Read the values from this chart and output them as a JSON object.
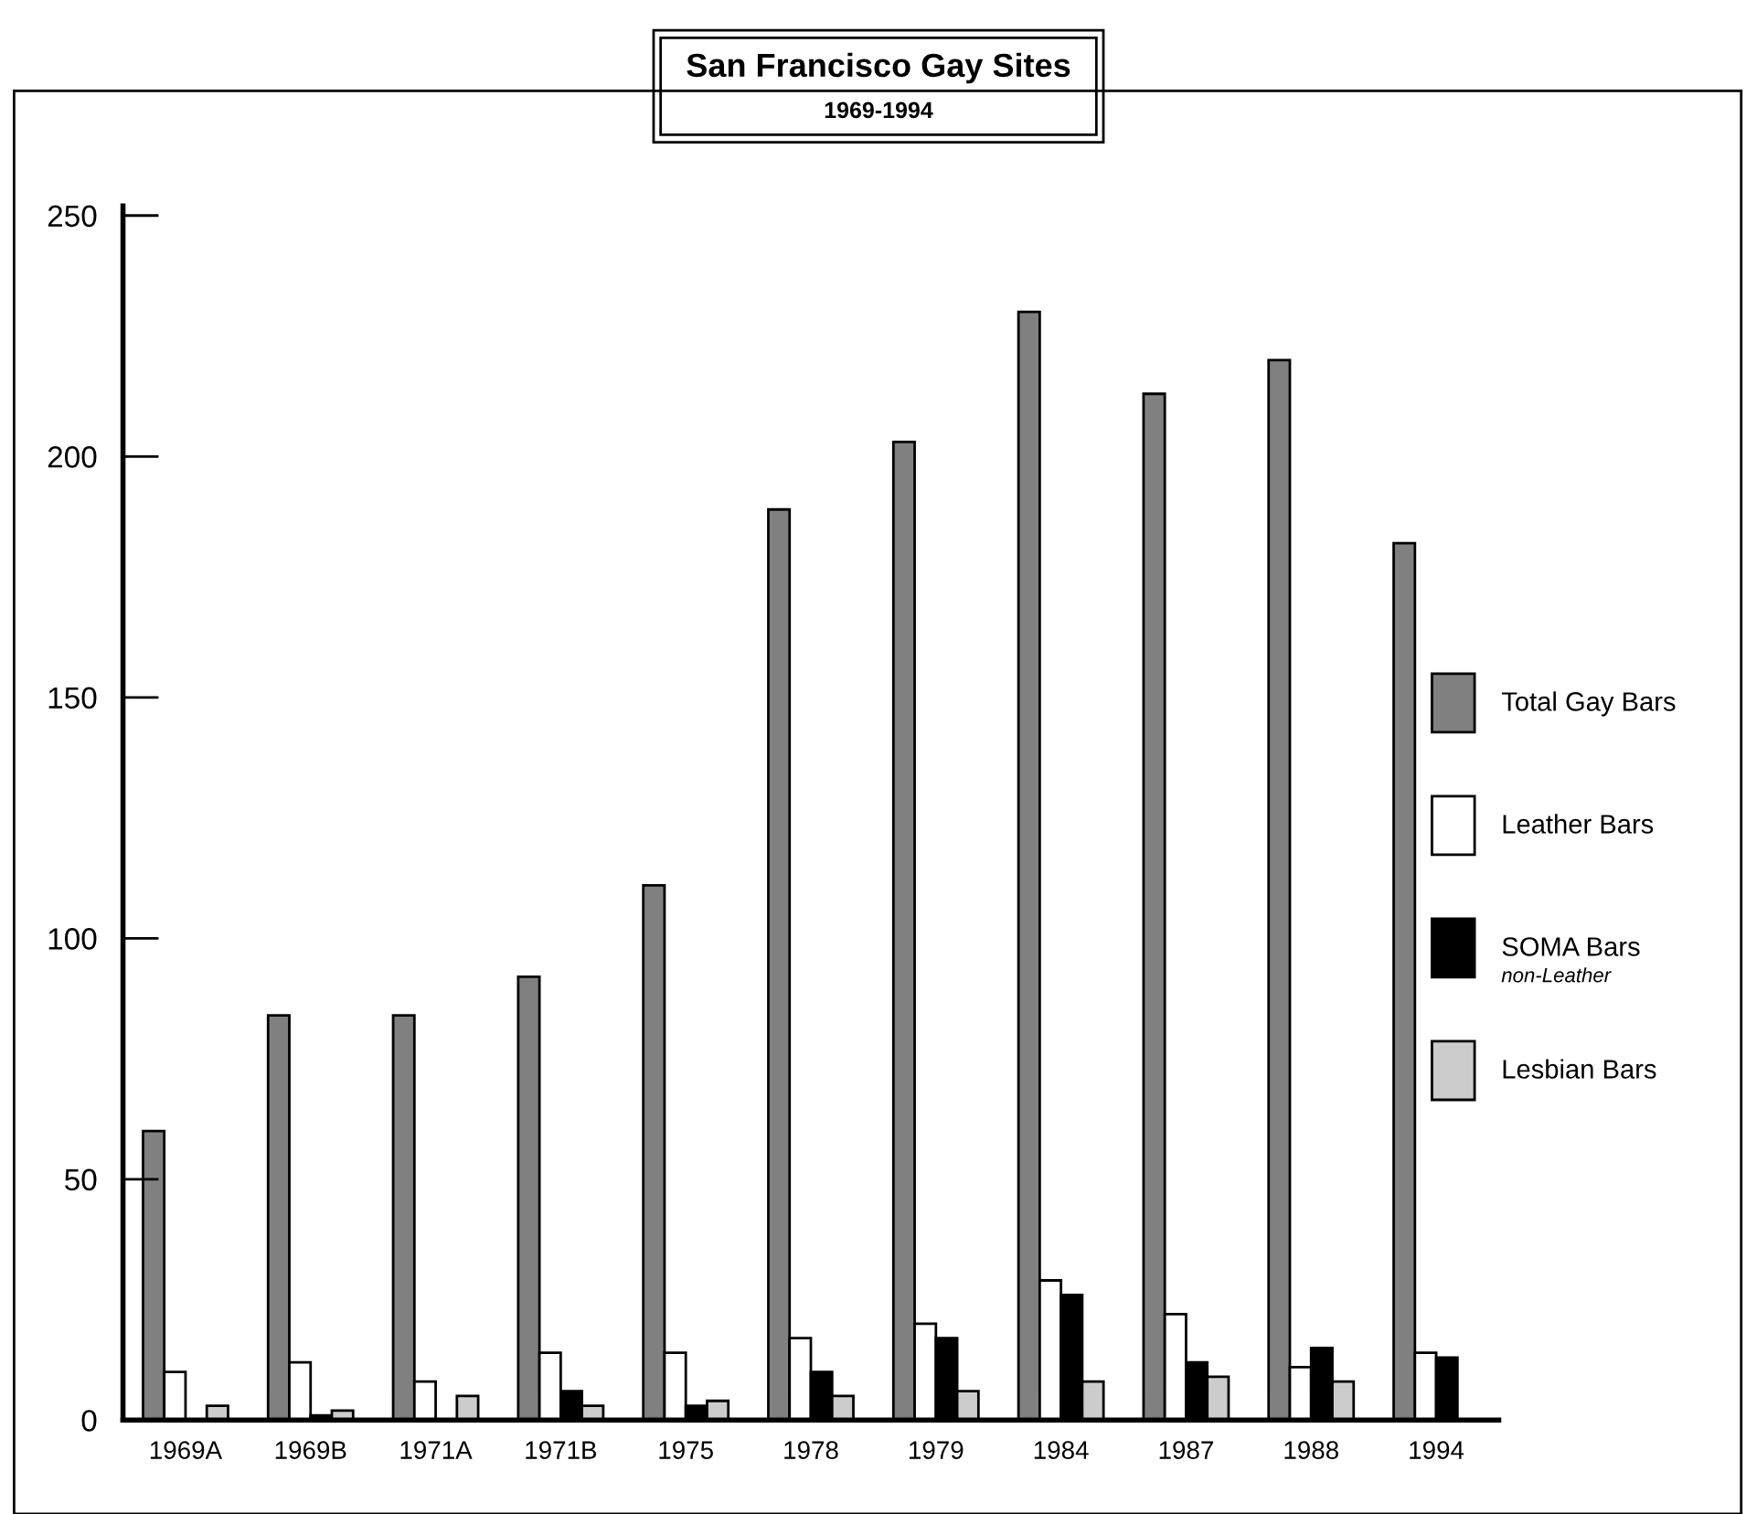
{
  "chart_data": {
    "type": "bar",
    "title": "San Francisco Gay Sites",
    "subtitle": "1969-1994",
    "categories": [
      "1969A",
      "1969B",
      "1971A",
      "1971B",
      "1975",
      "1978",
      "1979",
      "1984",
      "1987",
      "1988",
      "1994"
    ],
    "series": [
      {
        "name": "Total Gay Bars",
        "color": "#808080",
        "values": [
          60,
          84,
          84,
          92,
          111,
          189,
          203,
          230,
          213,
          220,
          182
        ]
      },
      {
        "name": "Leather Bars",
        "color": "#ffffff",
        "values": [
          10,
          12,
          8,
          14,
          14,
          17,
          20,
          29,
          22,
          11,
          14
        ]
      },
      {
        "name": "SOMA Bars",
        "color": "#000000",
        "values": [
          0,
          1,
          0,
          6,
          3,
          10,
          17,
          26,
          12,
          15,
          13
        ]
      },
      {
        "name": "Lesbian Bars",
        "color": "#cccccc",
        "values": [
          3,
          2,
          5,
          3,
          4,
          5,
          6,
          8,
          9,
          8,
          null
        ]
      }
    ],
    "annotations": [
      "non-Leather"
    ],
    "ylim": [
      0,
      252
    ],
    "yticks": [
      0,
      50,
      100,
      150,
      200,
      250
    ],
    "legend": "right",
    "grid": false
  }
}
